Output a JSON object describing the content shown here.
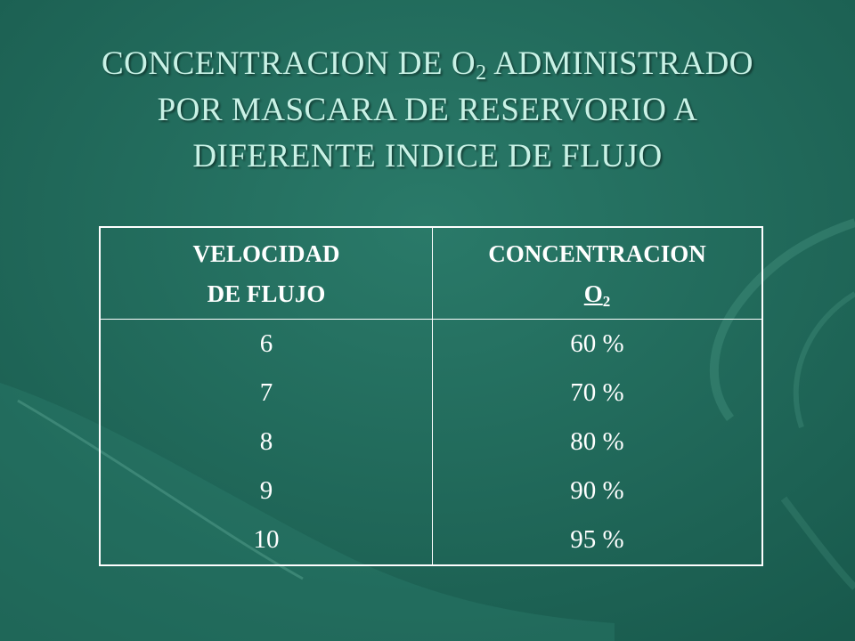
{
  "title": {
    "line1_before": "CONCENTRACION DE O",
    "line1_sub": "2",
    "line1_after": " ADMINISTRADO",
    "line2": "POR MASCARA DE RESERVORIO A",
    "line3": "DIFERENTE INDICE DE FLUJO"
  },
  "table": {
    "col1_header_line1": "VELOCIDAD",
    "col1_header_line2": "DE FLUJO",
    "col2_header_line1": "CONCENTRACION",
    "col2_header_o": "O",
    "col2_header_sub": "2",
    "rows": [
      {
        "flow": "6",
        "concentration": "60 %"
      },
      {
        "flow": "7",
        "concentration": "70 %"
      },
      {
        "flow": "8",
        "concentration": "80 %"
      },
      {
        "flow": "9",
        "concentration": "90 %"
      },
      {
        "flow": "10",
        "concentration": "95 %"
      }
    ]
  },
  "colors": {
    "background": "#1f6b5c",
    "title_text": "#c9f2e6",
    "table_text": "#ffffff",
    "border": "#ffffff"
  }
}
